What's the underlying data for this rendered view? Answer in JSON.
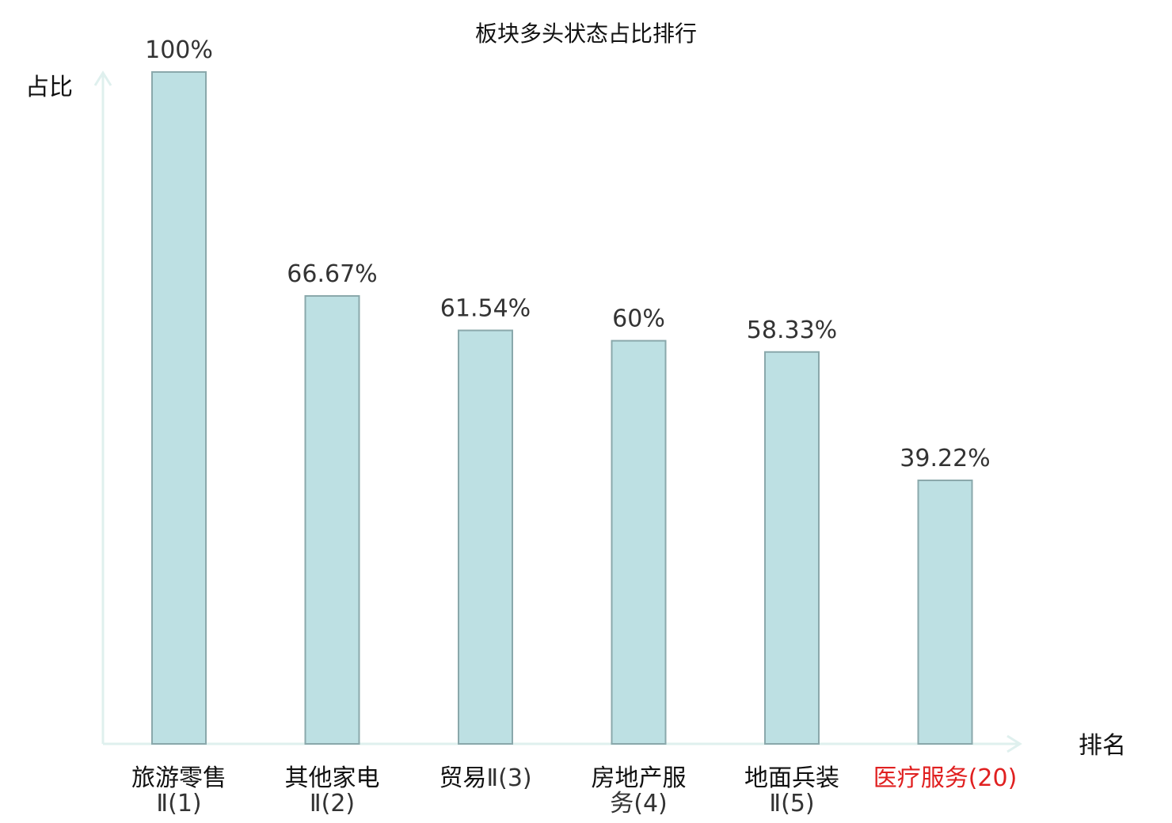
{
  "chart_data": {
    "type": "bar",
    "title": "板块多头状态占比排行",
    "ylabel": "占比",
    "xlabel": "排名",
    "ylim": [
      0,
      100
    ],
    "grid": false,
    "categories": [
      {
        "name": "旅游零售",
        "rank": "Ⅱ(1)",
        "highlight": false
      },
      {
        "name": "其他家电",
        "rank": "Ⅱ(2)",
        "highlight": false
      },
      {
        "name": "贸易",
        "rank": "Ⅱ(3)",
        "highlight": false
      },
      {
        "name": "房地产服",
        "rank": "务(4)",
        "highlight": false
      },
      {
        "name": "地面兵装",
        "rank": "Ⅱ(5)",
        "highlight": false
      },
      {
        "name": "医疗服务",
        "rank": "(20)",
        "highlight": true
      }
    ],
    "values": [
      100,
      66.67,
      61.54,
      60,
      58.33,
      39.22
    ],
    "value_labels": [
      "100%",
      "66.67%",
      "61.54%",
      "60%",
      "58.33%",
      "39.22%"
    ]
  },
  "colors": {
    "bar_fill": "#bde0e3",
    "bar_stroke": "#8aa8ab",
    "axis": "#dff0ee",
    "highlight": "#e02020",
    "text": "#333333"
  }
}
